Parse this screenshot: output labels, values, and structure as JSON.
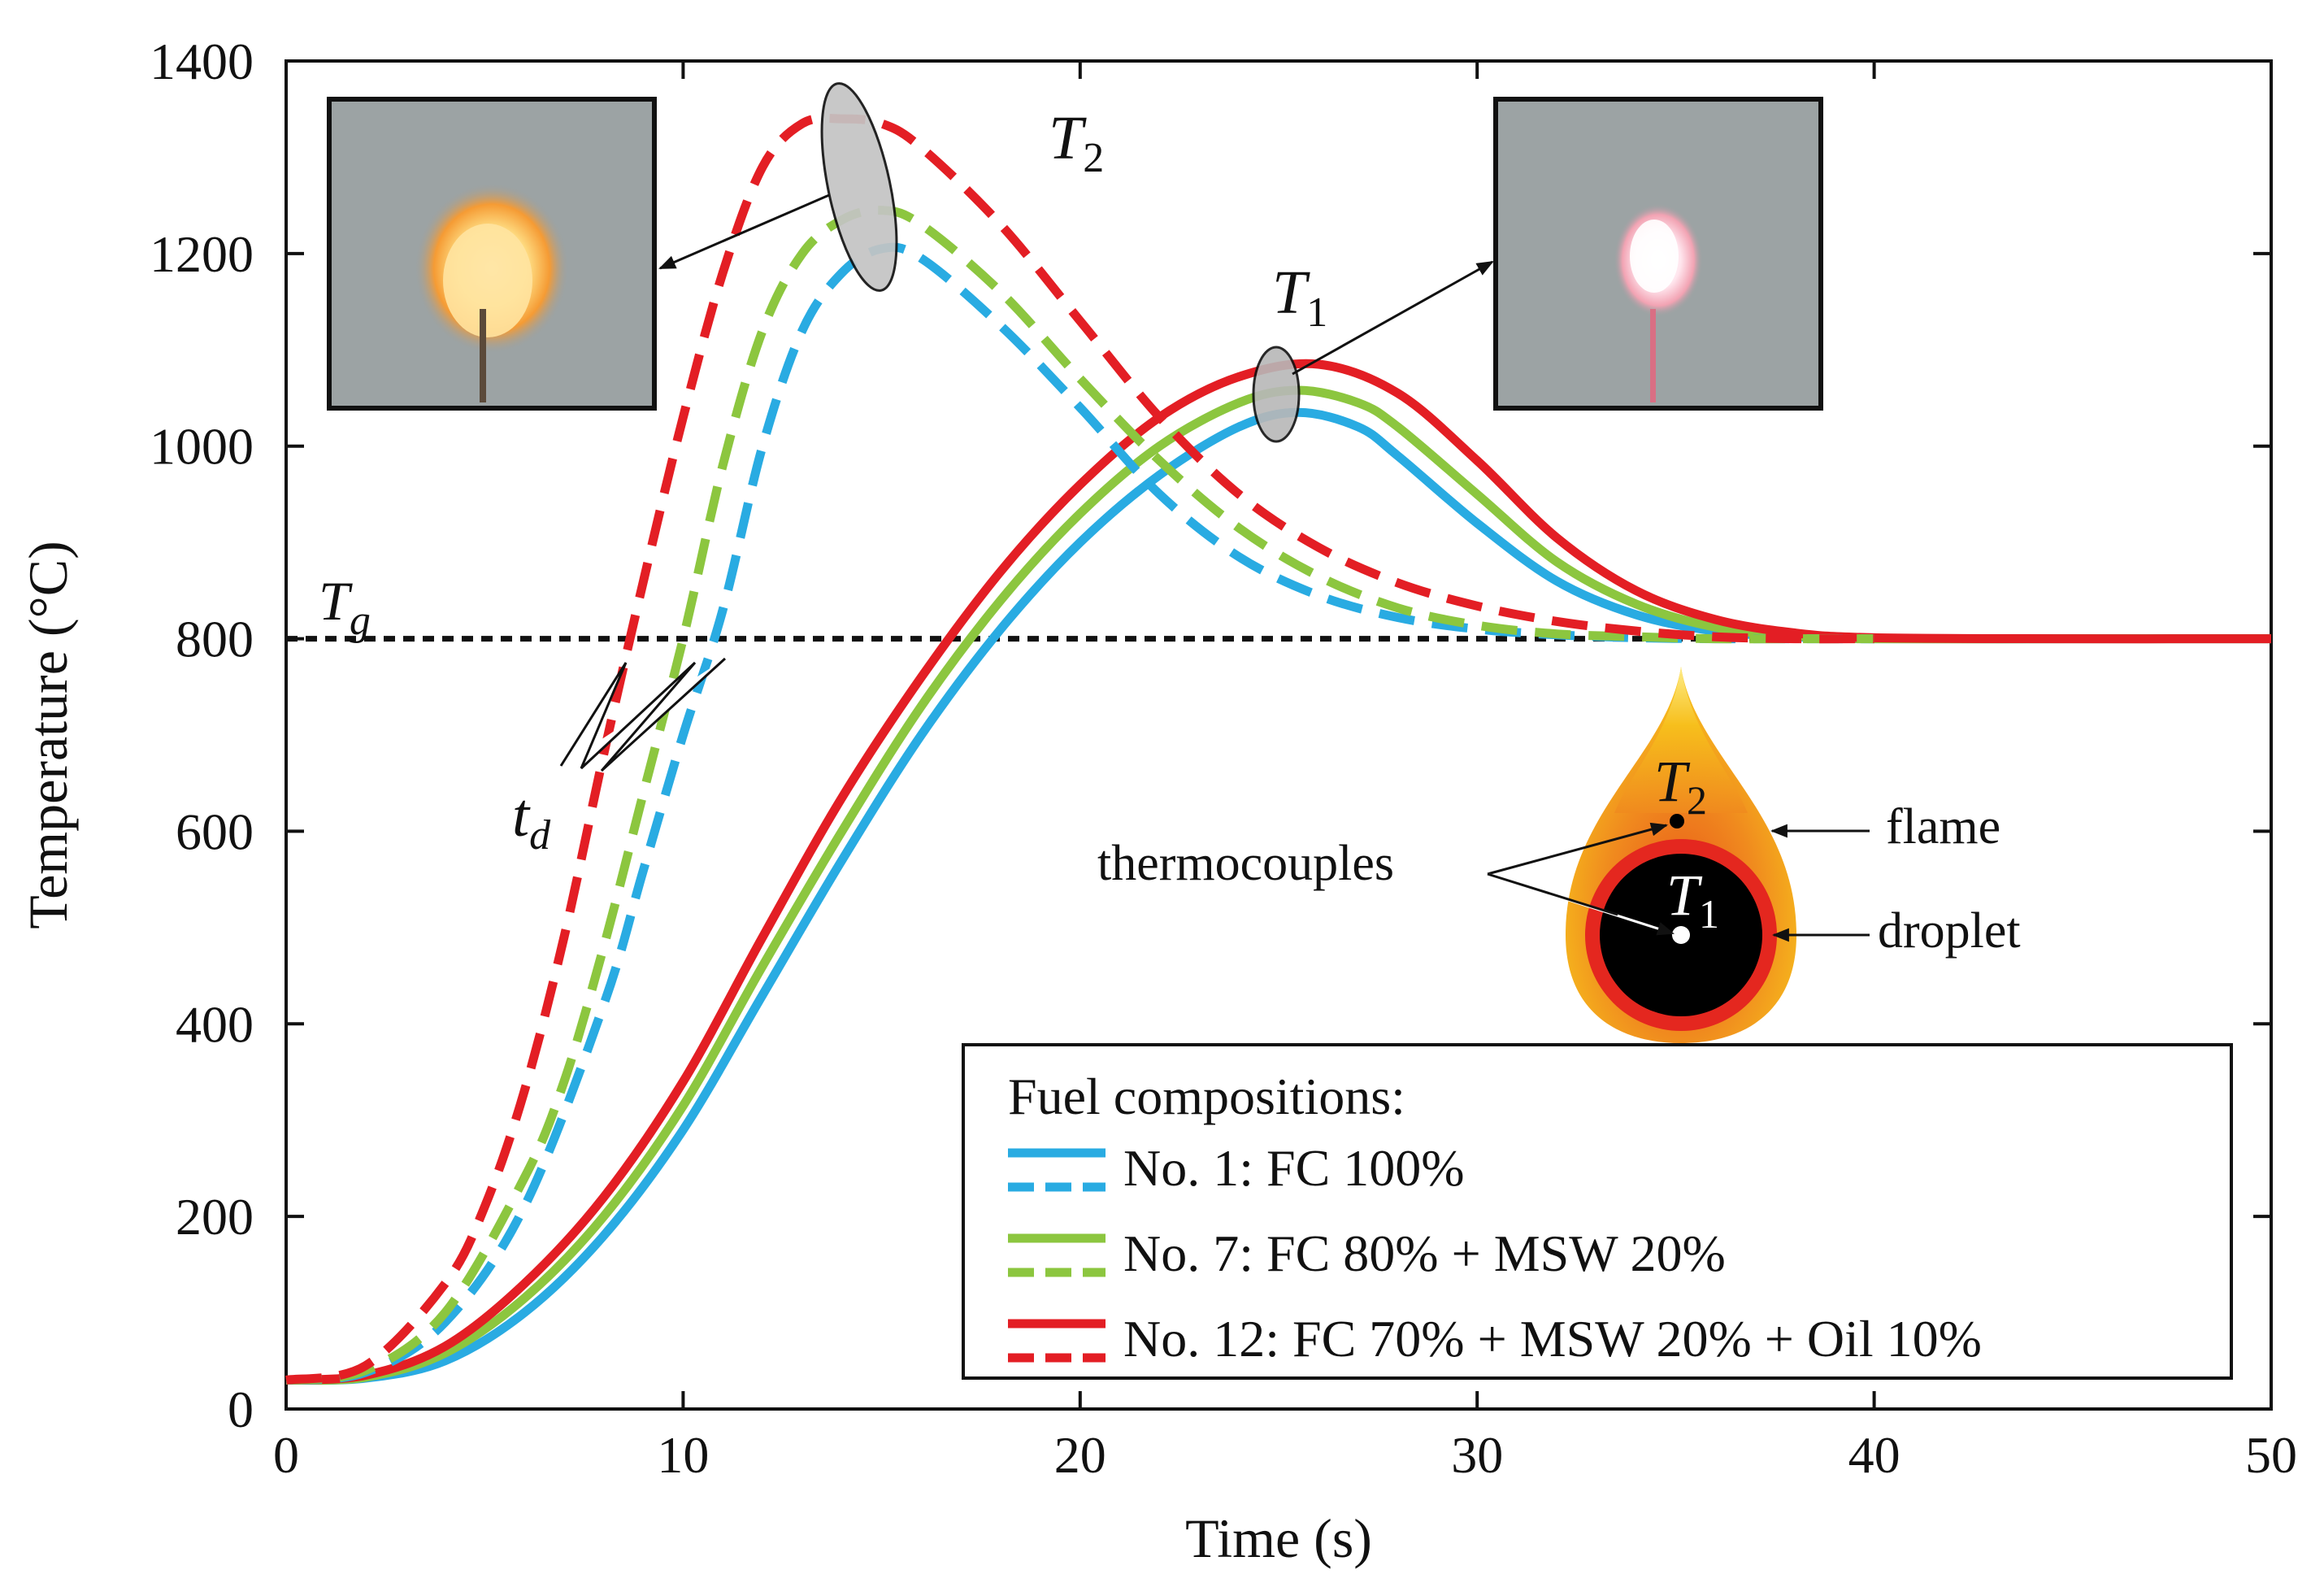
{
  "chart_data": {
    "type": "line",
    "xlabel": "Time (s)",
    "ylabel": "Temperature (°C)",
    "xlim": [
      0,
      50
    ],
    "ylim": [
      0,
      1400
    ],
    "xticks": [
      0,
      10,
      20,
      30,
      40,
      50
    ],
    "yticks": [
      0,
      200,
      400,
      600,
      800,
      1000,
      1200,
      1400
    ],
    "gas_temperature": {
      "label": "T",
      "subscript": "g",
      "value": 800
    },
    "legend": {
      "title": "Fuel compositions:",
      "position": "bottom-right"
    },
    "colors": {
      "no1": "#29abe2",
      "no7": "#8cc63f",
      "no12": "#e31e24"
    },
    "series": [
      {
        "name": "No. 1: FC 100%",
        "key": "no1",
        "sensor": "T1",
        "style": "solid",
        "x": [
          0,
          2,
          4,
          6,
          8,
          10,
          12,
          14,
          16,
          18,
          20,
          22,
          24,
          25.5,
          27,
          28,
          30,
          32,
          34,
          36,
          38,
          40,
          45,
          50
        ],
        "y": [
          30,
          32,
          50,
          100,
          180,
          290,
          430,
          570,
          700,
          810,
          900,
          970,
          1020,
          1035,
          1020,
          990,
          920,
          860,
          825,
          808,
          802,
          800,
          800,
          800
        ]
      },
      {
        "name": "No. 7: FC 80% + MSW 20%",
        "key": "no7",
        "sensor": "T1",
        "style": "solid",
        "x": [
          0,
          2,
          4,
          6,
          8,
          10,
          12,
          14,
          16,
          18,
          20,
          22,
          24,
          25.5,
          27,
          28,
          30,
          32,
          34,
          36,
          38,
          40,
          45,
          50
        ],
        "y": [
          30,
          33,
          58,
          115,
          200,
          315,
          460,
          600,
          730,
          840,
          930,
          1000,
          1045,
          1058,
          1045,
          1020,
          950,
          880,
          836,
          812,
          803,
          800,
          800,
          800
        ]
      },
      {
        "name": "No. 12: FC 70% + MSW 20% + Oil 10%",
        "key": "no12",
        "sensor": "T1",
        "style": "solid",
        "x": [
          0,
          2,
          4,
          6,
          8,
          10,
          12,
          14,
          16,
          18,
          20,
          22,
          24,
          26,
          28,
          30,
          32,
          34,
          36,
          38,
          40,
          45,
          50
        ],
        "y": [
          30,
          35,
          65,
          130,
          220,
          340,
          490,
          635,
          760,
          870,
          960,
          1030,
          1072,
          1085,
          1055,
          985,
          905,
          850,
          820,
          806,
          801,
          800,
          800
        ]
      },
      {
        "name": "No. 1: FC 100%",
        "key": "no1",
        "sensor": "T2",
        "style": "dashed",
        "x": [
          0,
          2,
          4,
          6,
          8,
          9,
          10,
          11,
          12,
          13,
          14,
          15,
          16,
          18,
          20,
          22,
          24,
          26,
          28,
          30,
          32,
          34,
          36,
          38,
          40
        ],
        "y": [
          30,
          38,
          90,
          210,
          420,
          560,
          700,
          830,
          1000,
          1120,
          1180,
          1205,
          1195,
          1125,
          1040,
          950,
          885,
          845,
          822,
          810,
          804,
          801,
          800,
          800,
          800
        ]
      },
      {
        "name": "No. 7: FC 80% + MSW 20%",
        "key": "no7",
        "sensor": "T2",
        "style": "dashed",
        "x": [
          0,
          2,
          4,
          6,
          7,
          8,
          9,
          10,
          11,
          12,
          13,
          14,
          15,
          16,
          18,
          20,
          22,
          24,
          26,
          28,
          30,
          32,
          34,
          36,
          38,
          40
        ],
        "y": [
          30,
          40,
          100,
          240,
          340,
          480,
          640,
          800,
          980,
          1120,
          1200,
          1235,
          1245,
          1230,
          1160,
          1070,
          985,
          915,
          865,
          832,
          814,
          805,
          802,
          800,
          800,
          800
        ]
      },
      {
        "name": "No. 12: FC 70% + MSW 20% + Oil 10%",
        "key": "no12",
        "sensor": "T2",
        "style": "dashed",
        "x": [
          0,
          2,
          4,
          5,
          6,
          7,
          8,
          9,
          10,
          11,
          12,
          13,
          14,
          15,
          16,
          18,
          20,
          22,
          24,
          26,
          28,
          30,
          32,
          34,
          36,
          38,
          40
        ],
        "y": [
          30,
          45,
          130,
          210,
          330,
          490,
          680,
          860,
          1030,
          1180,
          1290,
          1335,
          1340,
          1335,
          1310,
          1230,
          1130,
          1030,
          950,
          895,
          858,
          834,
          818,
          808,
          802,
          800,
          800
        ]
      }
    ],
    "annotations": {
      "T1_label": {
        "main": "T",
        "sub": "1"
      },
      "T2_label": {
        "main": "T",
        "sub": "2"
      },
      "td_label": {
        "main": "t",
        "sub": "d"
      },
      "thermocouples": "thermocouples",
      "flame": "flame",
      "droplet": "droplet",
      "schematic_T1": {
        "main": "T",
        "sub": "1"
      },
      "schematic_T2": {
        "main": "T",
        "sub": "2"
      }
    }
  }
}
